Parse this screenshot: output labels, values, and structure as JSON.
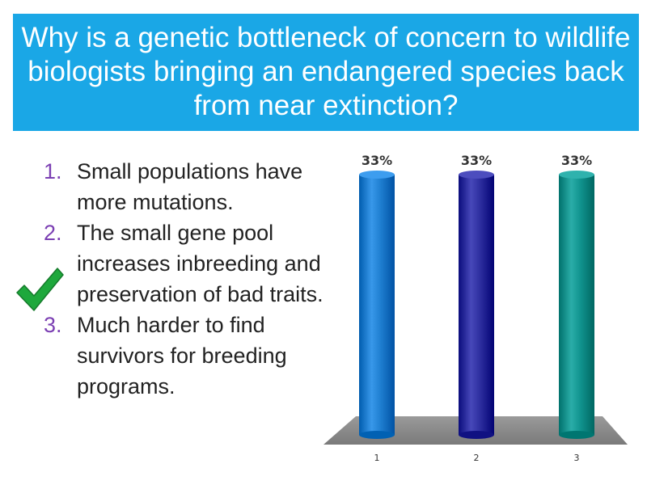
{
  "slide": {
    "title": "Why is a genetic bottleneck of concern to wildlife biologists bringing an endangered species back from near extinction?",
    "colors": {
      "title_bg": "#1aa7e6",
      "number": "#7b3fb3",
      "check": "#1ea83c"
    },
    "options": [
      {
        "number": "1.",
        "text": "Small populations have more mutations."
      },
      {
        "number": "2.",
        "text": "The small gene pool increases inbreeding and preservation of bad traits."
      },
      {
        "number": "3.",
        "text": "Much harder to find survivors for breeding programs."
      }
    ],
    "correct_marker_icon": "checkmark-icon"
  },
  "chart_data": {
    "type": "bar",
    "categories": [
      "1",
      "2",
      "3"
    ],
    "values": [
      33,
      33,
      33
    ],
    "value_labels": [
      "33%",
      "33%",
      "33%"
    ],
    "ylim": [
      0,
      33
    ],
    "colors": [
      "#1f7fd1",
      "#2e2fa0",
      "#11948f"
    ],
    "title": "",
    "xlabel": "",
    "ylabel": ""
  }
}
